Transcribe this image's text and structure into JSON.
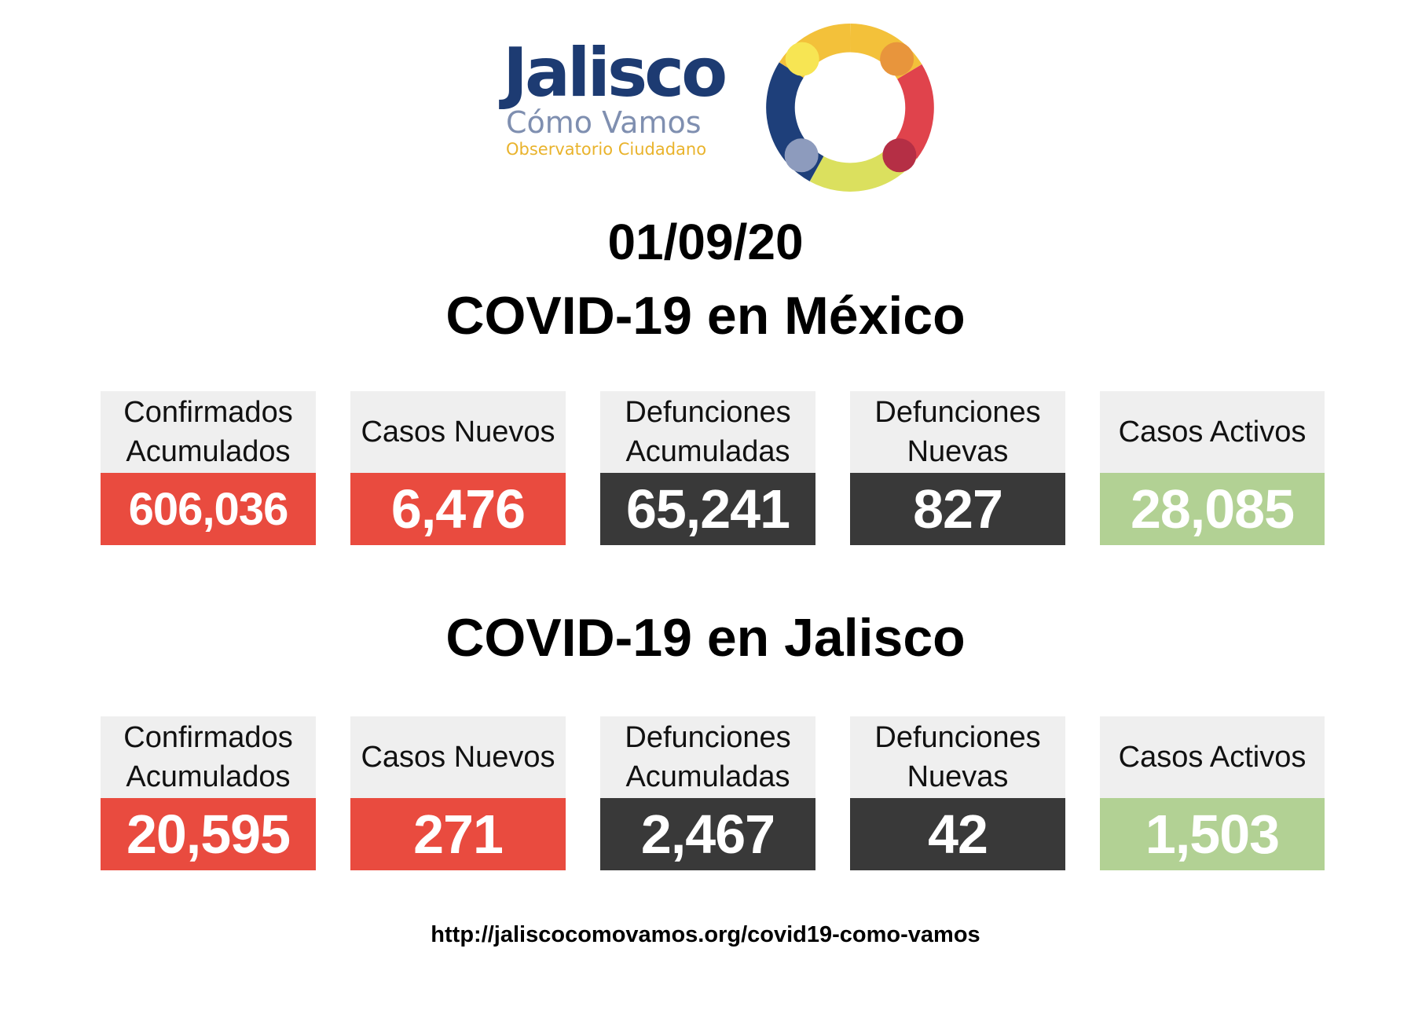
{
  "logo": {
    "word": "Jalisco",
    "subtitle": "Cómo Vamos",
    "tagline": "Observatorio Ciudadano"
  },
  "date": "01/09/20",
  "colors": {
    "red": "#e94b3f",
    "dark": "#393939",
    "green": "#b2d194",
    "label_bg": "#efefef",
    "logo_blue": "#1d3b72"
  },
  "mexico": {
    "title": "COVID-19 en México",
    "stats": [
      {
        "label": "Confirmados\nAcumulados",
        "value": "606,036"
      },
      {
        "label": "Casos Nuevos",
        "value": "6,476"
      },
      {
        "label": "Defunciones\nAcumuladas",
        "value": "65,241"
      },
      {
        "label": "Defunciones\nNuevas",
        "value": "827"
      },
      {
        "label": "Casos Activos",
        "value": "28,085"
      }
    ]
  },
  "jalisco": {
    "title": "COVID-19 en Jalisco",
    "stats": [
      {
        "label": "Confirmados\nAcumulados",
        "value": "20,595"
      },
      {
        "label": "Casos Nuevos",
        "value": "271"
      },
      {
        "label": "Defunciones\nAcumuladas",
        "value": "2,467"
      },
      {
        "label": "Defunciones\nNuevas",
        "value": "42"
      },
      {
        "label": "Casos Activos",
        "value": "1,503"
      }
    ]
  },
  "footer_url": "http://jaliscocomovamos.org/covid19-como-vamos"
}
